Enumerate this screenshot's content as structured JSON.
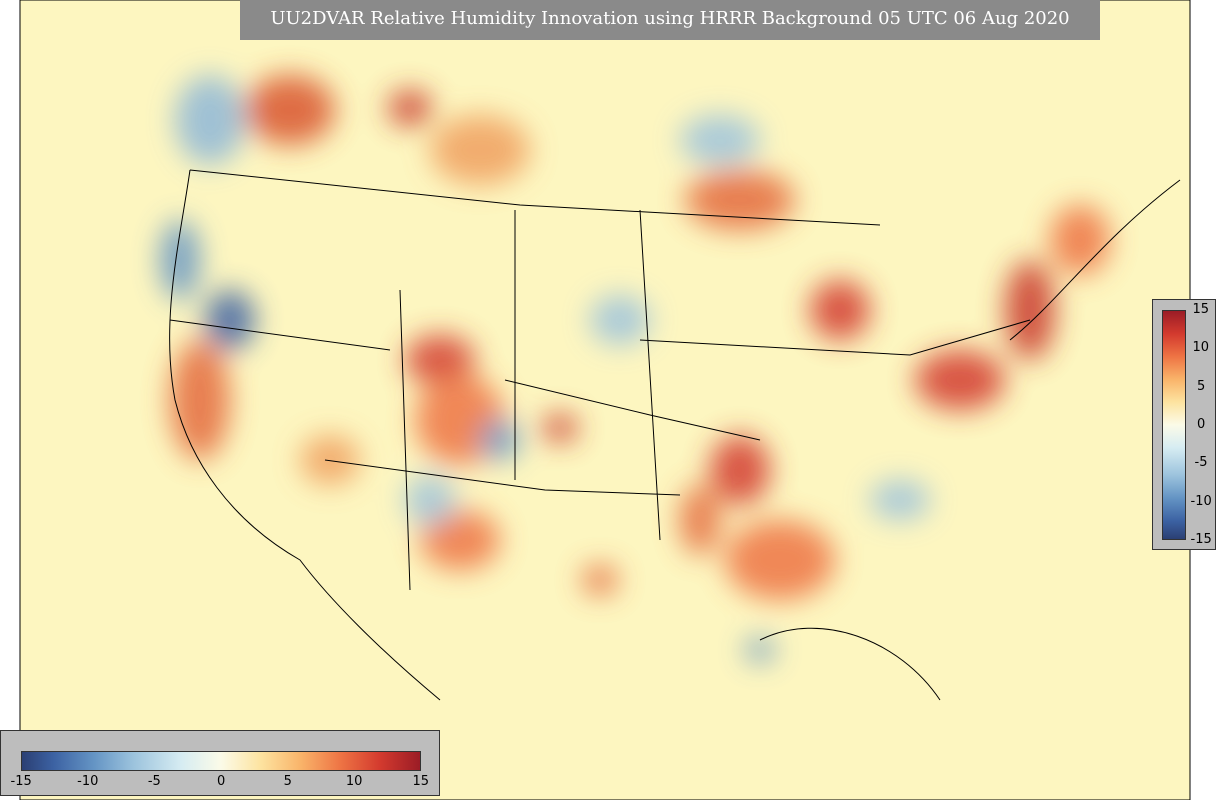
{
  "header": {
    "title": "UU2DVAR Relative Humidity Innovation using HRRR Background 05 UTC 06 Aug 2020"
  },
  "colorbar": {
    "ticks": [
      -15,
      -10,
      -5,
      0,
      5,
      10,
      15
    ]
  }
}
